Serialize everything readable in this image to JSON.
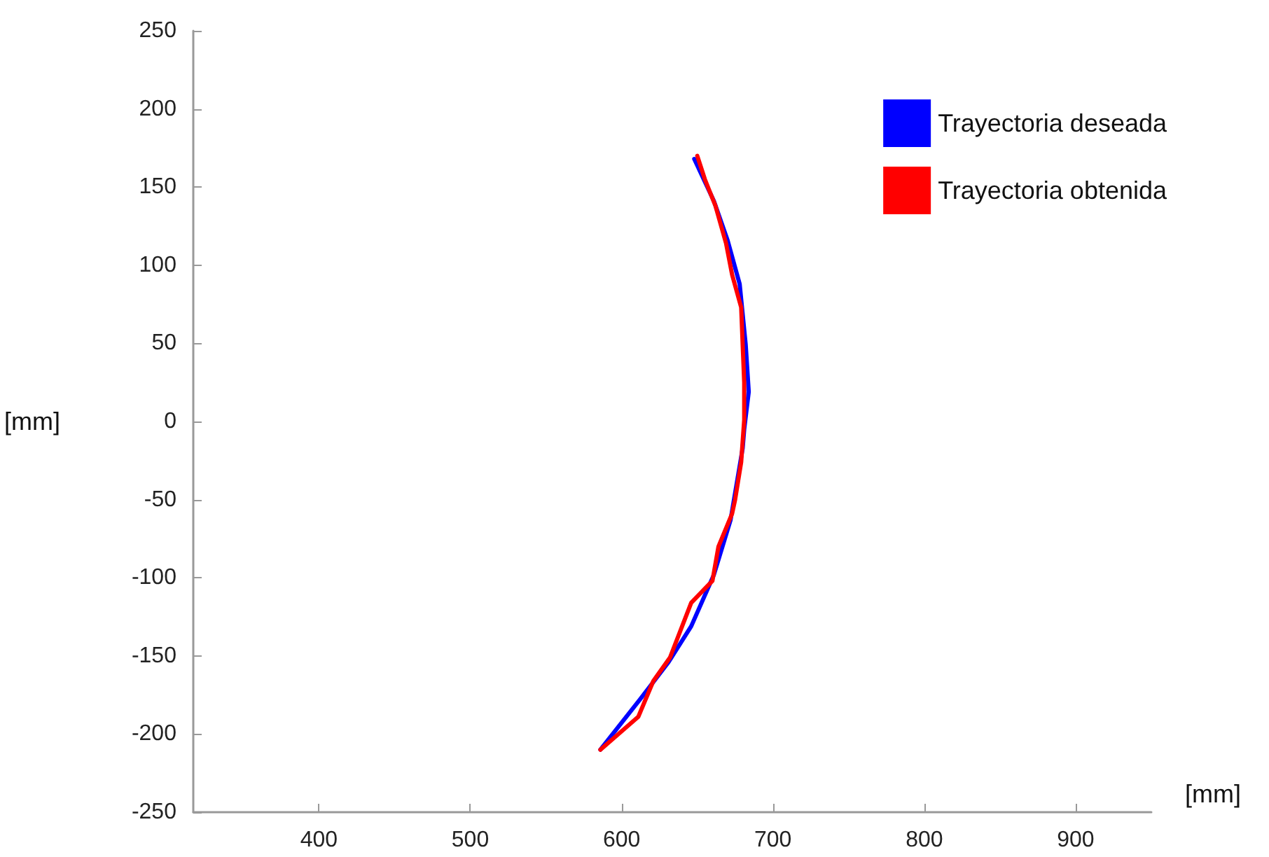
{
  "chart_data": {
    "type": "line",
    "xlabel": "[mm]",
    "ylabel": "[mm]",
    "xlim": [
      317,
      950
    ],
    "xticks": [
      400,
      500,
      600,
      700,
      800,
      900
    ],
    "ylim": [
      -250,
      250
    ],
    "yticks": [
      -250,
      -200,
      -150,
      -100,
      -50,
      0,
      50,
      100,
      150,
      200,
      250
    ],
    "grid": false,
    "legend": "top right",
    "marker": "none",
    "line_style": "solid",
    "series": [
      {
        "name": "Trayectoria deseada",
        "color": "#0000ff",
        "x": [
          586,
          612,
          631,
          646,
          661,
          672,
          680,
          681,
          684,
          682,
          678,
          670,
          661,
          648
        ],
        "values": [
          -210,
          -178,
          -154,
          -131,
          -98,
          -63,
          -17,
          -5,
          19,
          49,
          88,
          116,
          141,
          168
        ]
      },
      {
        "name": "Trayectoria obtenida",
        "color": "#ff0000",
        "x": [
          586,
          611,
          621,
          632,
          646,
          660,
          664,
          673,
          675,
          679,
          681,
          681,
          679,
          673,
          669,
          662,
          655,
          650
        ],
        "values": [
          -210,
          -189,
          -166,
          -151,
          -116,
          -102,
          -80,
          -59,
          -50,
          -26,
          1,
          25,
          73,
          94,
          114,
          138,
          155,
          170
        ]
      }
    ]
  }
}
